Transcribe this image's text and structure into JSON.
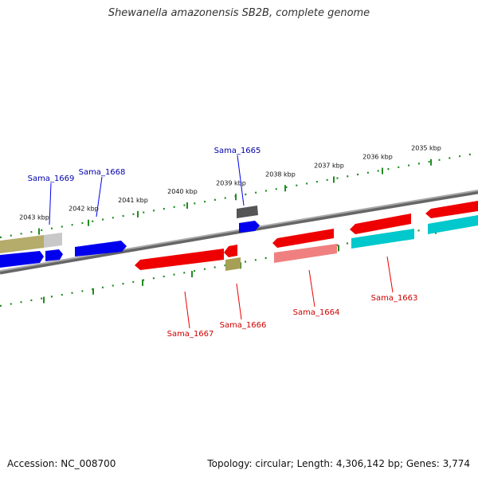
{
  "title": "Shewanella amazonensis SB2B, complete genome",
  "footer": {
    "accession": "Accession: NC_008700",
    "summary": "Topology: circular; Length: 4,306,142 bp; Genes: 3,774"
  },
  "colors": {
    "forward_gene": "#0000ee",
    "reverse_gene": "#ee0000",
    "forward_label": "#0000aa",
    "reverse_label": "#cc0000",
    "tick": "#228b22",
    "backbone": "#888888"
  },
  "ticks": [
    {
      "label": "2035 kbp"
    },
    {
      "label": "2036 kbp"
    },
    {
      "label": "2037 kbp"
    },
    {
      "label": "2038 kbp"
    },
    {
      "label": "2039 kbp"
    },
    {
      "label": "2040 kbp"
    },
    {
      "label": "2041 kbp"
    },
    {
      "label": "2042 kbp"
    },
    {
      "label": "2043 kbp"
    }
  ],
  "gene_labels": [
    {
      "name": "Sama_1669",
      "strand": "forward"
    },
    {
      "name": "Sama_1668",
      "strand": "forward"
    },
    {
      "name": "Sama_1665",
      "strand": "forward"
    },
    {
      "name": "Sama_1667",
      "strand": "reverse"
    },
    {
      "name": "Sama_1666",
      "strand": "reverse"
    },
    {
      "name": "Sama_1664",
      "strand": "reverse"
    },
    {
      "name": "Sama_1663",
      "strand": "reverse"
    }
  ]
}
